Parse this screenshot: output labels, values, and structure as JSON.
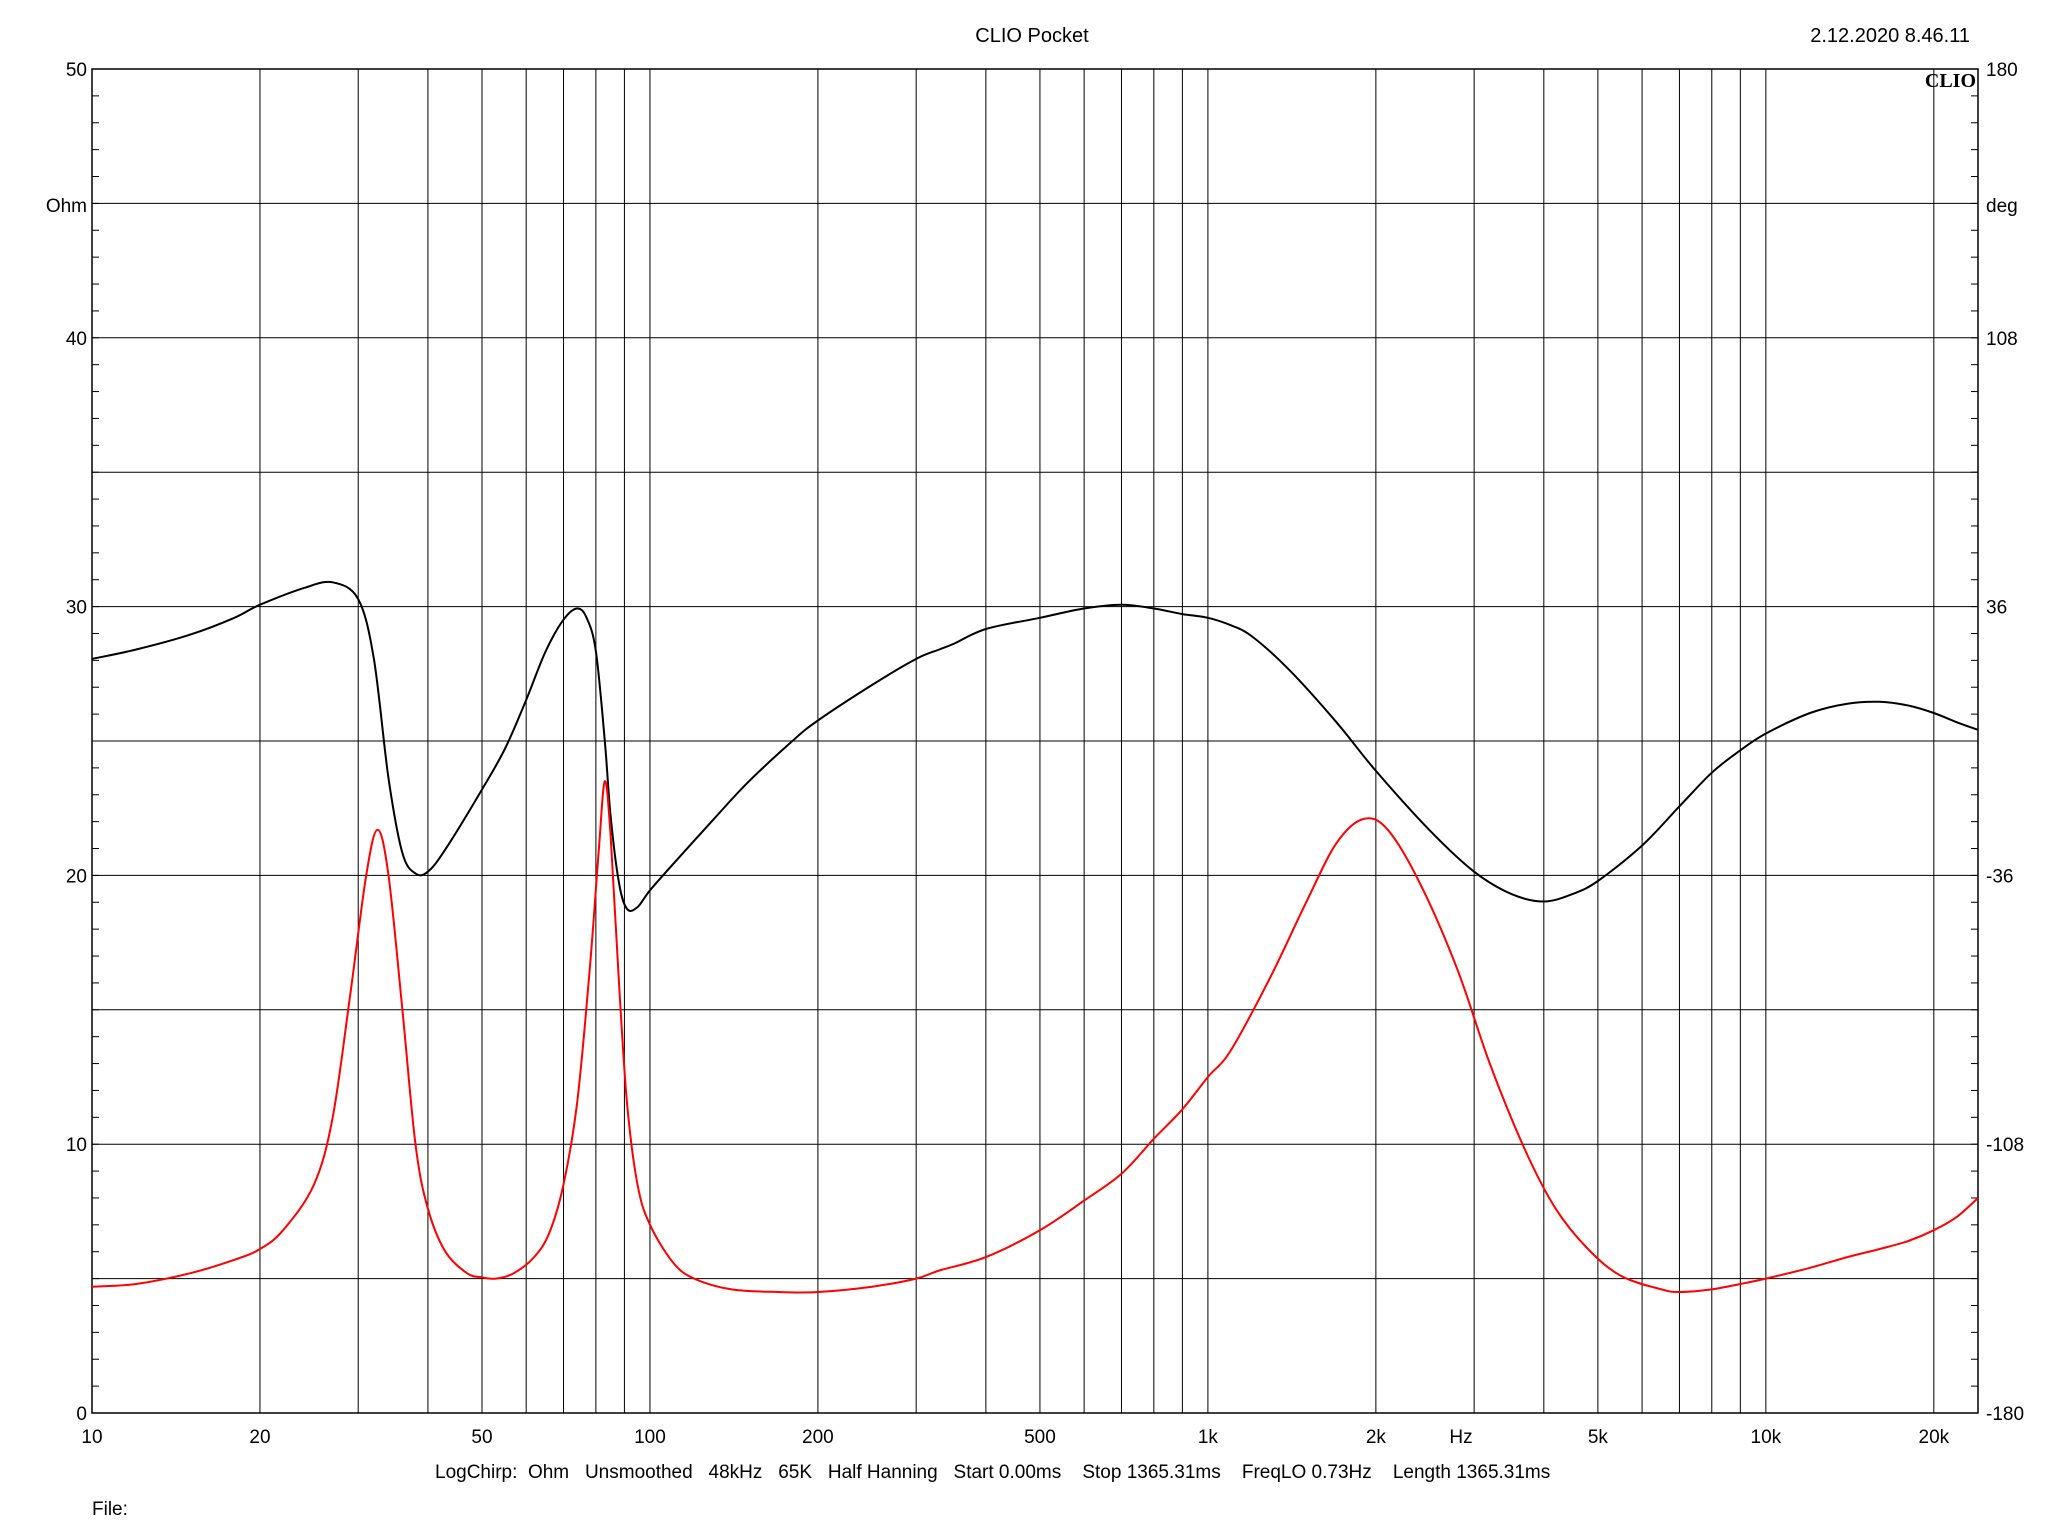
{
  "header": {
    "title": "CLIO Pocket",
    "timestamp": "2.12.2020 8.46.11",
    "logo_text": "CLIO"
  },
  "footer": {
    "settings": "LogChirp:  Ohm   Unsmoothed   48kHz   65K   Half Hanning   Start 0.00ms    Stop 1365.31ms    FreqLO 0.73Hz    Length 1365.31ms",
    "file_label": "File:"
  },
  "chart_data": {
    "type": "line",
    "x_scale": "log",
    "xlim": [
      10,
      24000
    ],
    "ylim_left": [
      0,
      50
    ],
    "ylim_right": [
      -180,
      180
    ],
    "left_unit": "Ohm",
    "right_unit": "deg",
    "x_unit": "Hz",
    "x_tick_labels": [
      {
        "value": 10,
        "label": "10"
      },
      {
        "value": 20,
        "label": "20"
      },
      {
        "value": 50,
        "label": "50"
      },
      {
        "value": 100,
        "label": "100"
      },
      {
        "value": 200,
        "label": "200"
      },
      {
        "value": 500,
        "label": "500"
      },
      {
        "value": 1000,
        "label": "1k"
      },
      {
        "value": 2000,
        "label": "2k"
      },
      {
        "value": 5000,
        "label": "5k"
      },
      {
        "value": 10000,
        "label": "10k"
      },
      {
        "value": 20000,
        "label": "20k"
      }
    ],
    "y_left_ticks": [
      0,
      10,
      20,
      30,
      40,
      50
    ],
    "y_right_ticks": [
      {
        "value": 180,
        "label": "180"
      },
      {
        "value": 108,
        "label": "108"
      },
      {
        "value": 36,
        "label": "36"
      },
      {
        "value": -36,
        "label": "-36"
      },
      {
        "value": -108,
        "label": "-108"
      },
      {
        "value": -180,
        "label": "-180"
      }
    ],
    "grid": true,
    "series": [
      {
        "color": "#000000",
        "axis": "right",
        "points": [
          [
            10,
            22
          ],
          [
            12,
            24.5
          ],
          [
            15,
            28.5
          ],
          [
            18,
            33
          ],
          [
            20,
            36.5
          ],
          [
            24,
            41
          ],
          [
            27,
            42.5
          ],
          [
            30,
            38
          ],
          [
            32,
            22
          ],
          [
            34,
            -10
          ],
          [
            36,
            -30
          ],
          [
            38,
            -35.5
          ],
          [
            40,
            -35
          ],
          [
            43,
            -29
          ],
          [
            50,
            -13
          ],
          [
            55,
            -2
          ],
          [
            60,
            11
          ],
          [
            65,
            24
          ],
          [
            70,
            32.5
          ],
          [
            74,
            35.5
          ],
          [
            77,
            33
          ],
          [
            80,
            24
          ],
          [
            83,
            0
          ],
          [
            85,
            -20
          ],
          [
            88,
            -38
          ],
          [
            91,
            -45
          ],
          [
            95,
            -44.5
          ],
          [
            100,
            -40
          ],
          [
            110,
            -33
          ],
          [
            130,
            -21
          ],
          [
            150,
            -11
          ],
          [
            180,
            0
          ],
          [
            200,
            5.5
          ],
          [
            250,
            15
          ],
          [
            300,
            22
          ],
          [
            330,
            24.5
          ],
          [
            350,
            26
          ],
          [
            400,
            30
          ],
          [
            500,
            33
          ],
          [
            600,
            35.5
          ],
          [
            700,
            36.5
          ],
          [
            800,
            35.5
          ],
          [
            900,
            34
          ],
          [
            1000,
            33
          ],
          [
            1100,
            31
          ],
          [
            1200,
            28
          ],
          [
            1400,
            19
          ],
          [
            1700,
            5
          ],
          [
            2000,
            -8
          ],
          [
            2500,
            -24
          ],
          [
            3000,
            -35
          ],
          [
            3500,
            -41
          ],
          [
            4000,
            -43
          ],
          [
            4500,
            -41
          ],
          [
            5000,
            -37.5
          ],
          [
            6000,
            -28
          ],
          [
            7000,
            -17.5
          ],
          [
            8000,
            -8.5
          ],
          [
            9000,
            -2.5
          ],
          [
            10000,
            2
          ],
          [
            12000,
            7.5
          ],
          [
            14000,
            10
          ],
          [
            16000,
            10.5
          ],
          [
            18000,
            9.5
          ],
          [
            20000,
            7.5
          ],
          [
            22000,
            5
          ],
          [
            24000,
            3
          ]
        ]
      },
      {
        "color": "#ff0000",
        "axis": "left",
        "points": [
          [
            10,
            4.7
          ],
          [
            12,
            4.8
          ],
          [
            15,
            5.2
          ],
          [
            18,
            5.7
          ],
          [
            20,
            6.1
          ],
          [
            22,
            6.8
          ],
          [
            25,
            8.5
          ],
          [
            27,
            11
          ],
          [
            29,
            15.5
          ],
          [
            31,
            20
          ],
          [
            32.5,
            21.7
          ],
          [
            34,
            20
          ],
          [
            36,
            15
          ],
          [
            38,
            10
          ],
          [
            40,
            7.6
          ],
          [
            43,
            6
          ],
          [
            47,
            5.2
          ],
          [
            50,
            5.05
          ],
          [
            53,
            5.0
          ],
          [
            57,
            5.2
          ],
          [
            62,
            5.8
          ],
          [
            66,
            6.7
          ],
          [
            70,
            8.5
          ],
          [
            74,
            11.5
          ],
          [
            78,
            16.5
          ],
          [
            81,
            21
          ],
          [
            83,
            23.5
          ],
          [
            85,
            21.5
          ],
          [
            88,
            16
          ],
          [
            91,
            11.5
          ],
          [
            95,
            8.5
          ],
          [
            100,
            7.0
          ],
          [
            110,
            5.6
          ],
          [
            120,
            5.0
          ],
          [
            140,
            4.6
          ],
          [
            170,
            4.5
          ],
          [
            200,
            4.5
          ],
          [
            250,
            4.7
          ],
          [
            300,
            5.0
          ],
          [
            330,
            5.3
          ],
          [
            400,
            5.8
          ],
          [
            500,
            6.8
          ],
          [
            600,
            7.9
          ],
          [
            700,
            8.9
          ],
          [
            800,
            10.2
          ],
          [
            900,
            11.3
          ],
          [
            1000,
            12.5
          ],
          [
            1100,
            13.5
          ],
          [
            1300,
            16.3
          ],
          [
            1500,
            19.0
          ],
          [
            1700,
            21.2
          ],
          [
            1900,
            22.1
          ],
          [
            2100,
            21.7
          ],
          [
            2400,
            19.7
          ],
          [
            2800,
            16.5
          ],
          [
            3200,
            13
          ],
          [
            3700,
            9.8
          ],
          [
            4200,
            7.6
          ],
          [
            4800,
            6.1
          ],
          [
            5500,
            5.1
          ],
          [
            6500,
            4.6
          ],
          [
            7000,
            4.5
          ],
          [
            8000,
            4.6
          ],
          [
            9000,
            4.8
          ],
          [
            10000,
            5.0
          ],
          [
            12000,
            5.4
          ],
          [
            14000,
            5.8
          ],
          [
            16000,
            6.1
          ],
          [
            18000,
            6.4
          ],
          [
            20000,
            6.8
          ],
          [
            22000,
            7.3
          ],
          [
            24000,
            8.0
          ]
        ]
      }
    ]
  }
}
